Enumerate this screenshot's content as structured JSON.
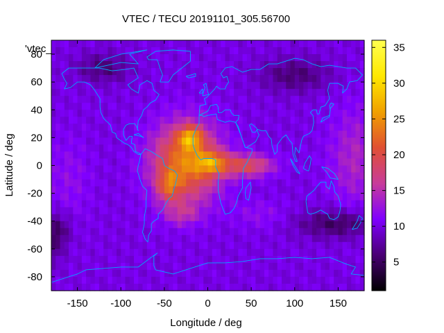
{
  "chart_data": {
    "type": "heatmap",
    "title": "VTEC / TECU 20191101_305.56700",
    "xlabel": "Longitude / deg",
    "ylabel": "Latitude / deg",
    "xlim": [
      -180,
      180
    ],
    "ylim": [
      -90,
      90
    ],
    "x_ticks": [
      -150,
      -100,
      -50,
      0,
      50,
      100,
      150
    ],
    "y_ticks": [
      -80,
      -60,
      -40,
      -20,
      0,
      20,
      40,
      60,
      80
    ],
    "colorbar": {
      "range": [
        1,
        36
      ],
      "ticks": [
        5,
        10,
        15,
        20,
        25,
        30,
        35
      ],
      "palette": [
        "#000000",
        "#4a0075",
        "#8000ff",
        "#c83c9a",
        "#e05032",
        "#f0a000",
        "#ffe800",
        "#ffff50"
      ]
    },
    "key_label": "'vtec_",
    "overlay": "coastlines",
    "peaks": [
      {
        "lon": -15,
        "lat": 20,
        "vtec": 33
      },
      {
        "lon": -5,
        "lat": 0,
        "vtec": 33
      },
      {
        "lon": -40,
        "lat": -15,
        "vtec": 27
      }
    ],
    "background_vtec": 10
  }
}
